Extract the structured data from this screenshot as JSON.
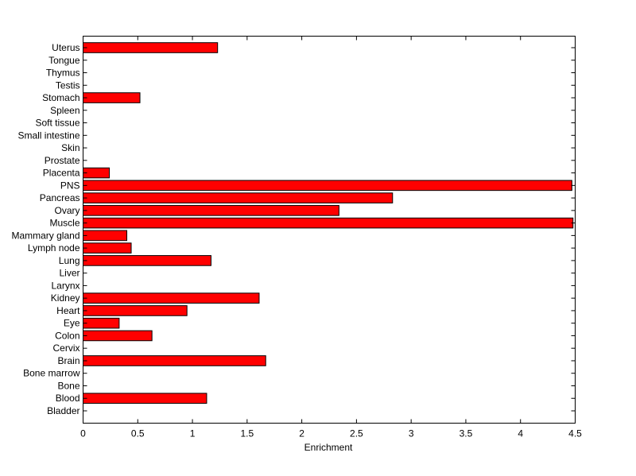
{
  "chart_data": {
    "type": "bar",
    "orientation": "horizontal",
    "categories": [
      "Bladder",
      "Blood",
      "Bone",
      "Bone marrow",
      "Brain",
      "Cervix",
      "Colon",
      "Eye",
      "Heart",
      "Kidney",
      "Larynx",
      "Liver",
      "Lung",
      "Lymph node",
      "Mammary gland",
      "Muscle",
      "Ovary",
      "Pancreas",
      "PNS",
      "Placenta",
      "Prostate",
      "Skin",
      "Small intestine",
      "Soft tissue",
      "Spleen",
      "Stomach",
      "Testis",
      "Thymus",
      "Tongue",
      "Uterus"
    ],
    "values": [
      0,
      1.13,
      0,
      0,
      1.67,
      0,
      0.63,
      0.33,
      0.95,
      1.61,
      0,
      0,
      1.17,
      0.44,
      0.4,
      4.48,
      2.34,
      2.83,
      4.47,
      0.24,
      0,
      0,
      0,
      0,
      0,
      0.52,
      0,
      0,
      0,
      1.23
    ],
    "title": "",
    "xlabel": "Enrichment",
    "ylabel": "",
    "xlim": [
      0,
      4.5
    ],
    "xticks": [
      0,
      0.5,
      1,
      1.5,
      2,
      2.5,
      3,
      3.5,
      4,
      4.5
    ],
    "xtick_labels": [
      "0",
      "0.5",
      "1",
      "1.5",
      "2",
      "2.5",
      "3",
      "3.5",
      "4",
      "4.5"
    ],
    "grid": false,
    "legend": "none",
    "bar_color": "#ff0000",
    "edge_color": "#000000"
  }
}
